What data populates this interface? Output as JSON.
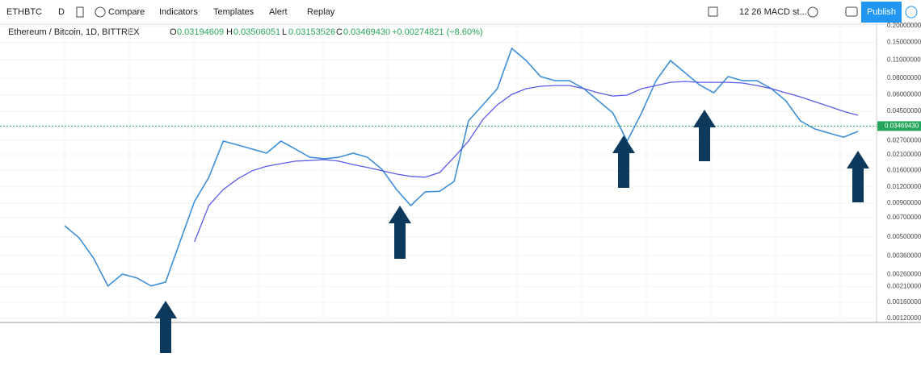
{
  "toolbar": {
    "symbol": "ETHBTC",
    "interval": "D",
    "buttons": [
      "Compare",
      "Indicators",
      "Templates",
      "Alert",
      "Replay"
    ],
    "indicator": "12 26 MACD st...",
    "publish": "Publish"
  },
  "legend": {
    "title": "Ethereum / Bitcoin, 1D, BITTREX",
    "open_label": "O",
    "open": "0.03194609",
    "high_label": "H",
    "high": "0.03506051",
    "low_label": "L",
    "low": "0.03153526",
    "close_label": "C",
    "close": "0.03469430",
    "change": "+0.00274821 (+8.60%)"
  },
  "chart_data": {
    "type": "line",
    "log": true,
    "grid": true,
    "ylim": [
      0.00112,
      0.206
    ],
    "yticks": [
      {
        "value": 0.2,
        "label": "0.20000000"
      },
      {
        "value": 0.15,
        "label": "0.15000000"
      },
      {
        "value": 0.11,
        "label": "0.11000000"
      },
      {
        "value": 0.08,
        "label": "0.08000000"
      },
      {
        "value": 0.06,
        "label": "0.06000000"
      },
      {
        "value": 0.045,
        "label": "0.04500000"
      },
      {
        "value": 0.027,
        "label": "0.02700000"
      },
      {
        "value": 0.021,
        "label": "0.02100000"
      },
      {
        "value": 0.016,
        "label": "0.01600000"
      },
      {
        "value": 0.012,
        "label": "0.01200000"
      },
      {
        "value": 0.009,
        "label": "0.00900000"
      },
      {
        "value": 0.007,
        "label": "0.00700000"
      },
      {
        "value": 0.005,
        "label": "0.00500000"
      },
      {
        "value": 0.0036,
        "label": "0.00360000"
      },
      {
        "value": 0.0026,
        "label": "0.00260000"
      },
      {
        "value": 0.0021,
        "label": "0.00210000"
      },
      {
        "value": 0.0016,
        "label": "0.00160000"
      },
      {
        "value": 0.0012,
        "label": "0.00120000"
      }
    ],
    "last_price": {
      "value": 0.0346943,
      "label": "0.03469430"
    },
    "series": [
      {
        "color": "#3d8fd8",
        "values": [
          0.00608,
          0.00492,
          0.00346,
          0.00212,
          0.00261,
          0.00244,
          0.00212,
          0.00227,
          0.00459,
          0.00928,
          0.01416,
          0.0267,
          0.0249,
          0.0232,
          0.0216,
          0.0267,
          0.0232,
          0.0201,
          0.0196,
          0.0201,
          0.0216,
          0.0201,
          0.0163,
          0.01146,
          0.00864,
          0.011,
          0.0111,
          0.0132,
          0.038,
          0.0503,
          0.0667,
          0.1349,
          0.1091,
          0.0824,
          0.0767,
          0.0767,
          0.0667,
          0.054,
          0.0437,
          0.0267,
          0.0437,
          0.0767,
          0.1091,
          0.0884,
          0.0715,
          0.0621,
          0.0824,
          0.0767,
          0.0767,
          0.0667,
          0.054,
          0.038,
          0.033,
          0.0307,
          0.0286,
          0.0316
        ]
      },
      {
        "color": "#5b5be8",
        "values": [
          null,
          null,
          null,
          null,
          null,
          null,
          null,
          null,
          null,
          0.00459,
          0.00864,
          0.01146,
          0.0138,
          0.0159,
          0.0172,
          0.018,
          0.0188,
          0.019,
          0.0193,
          0.0188,
          0.0177,
          0.0168,
          0.0159,
          0.015,
          0.0144,
          0.0142,
          0.0154,
          0.0201,
          0.0267,
          0.039,
          0.0503,
          0.0604,
          0.0667,
          0.0696,
          0.0705,
          0.0705,
          0.0667,
          0.0621,
          0.0587,
          0.0596,
          0.0667,
          0.0705,
          0.0746,
          0.0757,
          0.0746,
          0.0746,
          0.0746,
          0.0736,
          0.0705,
          0.0667,
          0.0621,
          0.0579,
          0.0532,
          0.0489,
          0.0449,
          0.0419
        ]
      }
    ]
  }
}
